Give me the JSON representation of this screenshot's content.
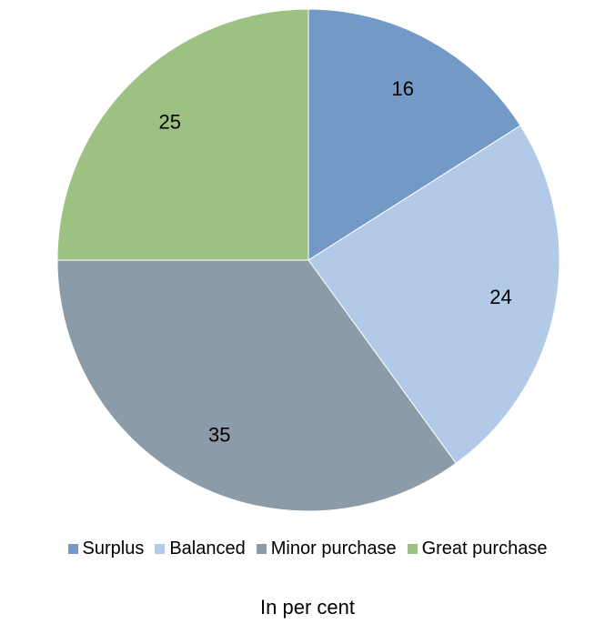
{
  "chart_data": {
    "type": "pie",
    "categories": [
      "Surplus",
      "Balanced",
      "Minor purchase",
      "Great purchase"
    ],
    "values": [
      16,
      24,
      35,
      25
    ],
    "colors": [
      "#7399c6",
      "#b3c9e8",
      "#8b9ba7",
      "#9dc183"
    ],
    "start_angle_deg": 0,
    "direction": "clockwise",
    "legend_position": "bottom",
    "footnote": "In per cent"
  }
}
